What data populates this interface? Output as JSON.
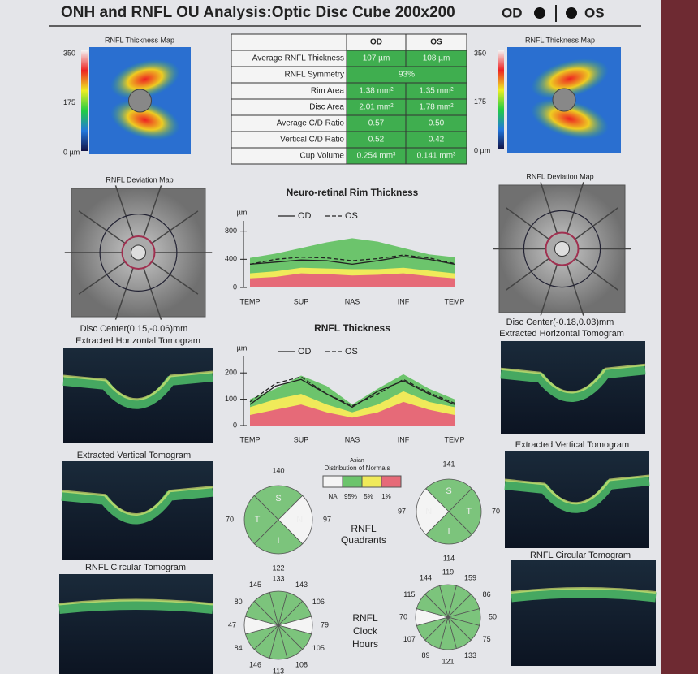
{
  "header": {
    "title": "ONH and RNFL OU Analysis:Optic Disc Cube 200x200",
    "od": "OD",
    "os": "OS"
  },
  "thickness_map": {
    "title": "RNFL Thickness Map",
    "scale": [
      350,
      175,
      "0 µm"
    ]
  },
  "table": {
    "header": [
      "OD",
      "OS"
    ],
    "rows": [
      [
        "Average RNFL Thickness",
        "107 µm",
        "108 µm"
      ],
      [
        "RNFL Symmetry",
        "93%"
      ],
      [
        "Rim Area",
        "1.38 mm²",
        "1.35 mm²"
      ],
      [
        "Disc Area",
        "2.01 mm²",
        "1.78 mm²"
      ],
      [
        "Average C/D Ratio",
        "0.57",
        "0.50"
      ],
      [
        "Vertical C/D Ratio",
        "0.52",
        "0.42"
      ],
      [
        "Cup Volume",
        "0.254 mm³",
        "0.141 mm³"
      ]
    ]
  },
  "deviation_map": {
    "title": "RNFL Deviation Map"
  },
  "disc_center": {
    "od": "Disc Center(0.15,-0.06)mm",
    "os": "Disc Center(-0.18,0.03)mm"
  },
  "tomograms": {
    "horizontal": "Extracted Horizontal Tomogram",
    "vertical": "Extracted Vertical Tomogram",
    "circular": "RNFL Circular Tomogram"
  },
  "rim_chart": {
    "type": "line",
    "title": "Neuro-retinal Rim Thickness",
    "y_unit": "µm",
    "categories": [
      "TEMP",
      null,
      "SUP",
      null,
      "NAS",
      null,
      "INF",
      null,
      "TEMP"
    ],
    "ylim": [
      0,
      900
    ],
    "yticks": [
      0,
      400,
      800
    ],
    "bands": [
      {
        "color": "#6cc46c",
        "values": [
          420,
          480,
          560,
          640,
          700,
          650,
          560,
          470,
          430
        ]
      },
      {
        "color": "#f0ea5a",
        "values": [
          200,
          230,
          280,
          270,
          260,
          260,
          280,
          240,
          200
        ]
      },
      {
        "color": "#e66a78",
        "values": [
          130,
          150,
          200,
          190,
          170,
          180,
          200,
          160,
          130
        ]
      }
    ],
    "series": [
      {
        "name": "OD",
        "color": "#222222",
        "line_style": "solid",
        "values": [
          330,
          360,
          390,
          380,
          330,
          380,
          440,
          400,
          330
        ]
      },
      {
        "name": "OS",
        "color": "#222222",
        "line_style": "dashed",
        "values": [
          330,
          400,
          430,
          420,
          380,
          410,
          460,
          420,
          340
        ]
      }
    ]
  },
  "rnfl_chart": {
    "type": "line",
    "title": "RNFL Thickness",
    "y_unit": "µm",
    "categories": [
      "TEMP",
      null,
      "SUP",
      null,
      "NAS",
      null,
      "INF",
      null,
      "TEMP"
    ],
    "ylim": [
      0,
      250
    ],
    "yticks": [
      0,
      100,
      200
    ],
    "bands": [
      {
        "color": "#6cc46c",
        "values": [
          100,
          140,
          190,
          150,
          80,
          140,
          195,
          140,
          100
        ]
      },
      {
        "color": "#f0ea5a",
        "values": [
          70,
          100,
          120,
          80,
          50,
          80,
          130,
          90,
          70
        ]
      },
      {
        "color": "#e66a78",
        "values": [
          40,
          60,
          80,
          50,
          30,
          50,
          90,
          60,
          40
        ]
      }
    ],
    "series": [
      {
        "name": "OD",
        "color": "#222222",
        "line_style": "solid",
        "values": [
          80,
          150,
          175,
          120,
          70,
          130,
          170,
          120,
          80
        ]
      },
      {
        "name": "OS",
        "color": "#222222",
        "line_style": "dashed",
        "values": [
          90,
          160,
          185,
          120,
          75,
          120,
          175,
          125,
          85
        ]
      }
    ]
  },
  "normals_legend": {
    "title": [
      "Asian",
      "Distribution of Normals"
    ],
    "labels": [
      "NA",
      "95%",
      "5%",
      "1%"
    ],
    "colors": [
      "#f4f4f4",
      "#6cc46c",
      "#f0ea5a",
      "#e66a78"
    ]
  },
  "quadrants": {
    "title": [
      "RNFL",
      "Quadrants"
    ],
    "od": {
      "letters": [
        "S",
        "N",
        "I",
        "T"
      ],
      "values": [
        140,
        97,
        122,
        70
      ],
      "colors": [
        "#7cc47c",
        "#f4f4f4",
        "#7cc47c",
        "#7cc47c"
      ]
    },
    "os": {
      "letters": [
        "S",
        "T",
        "I",
        "N"
      ],
      "values": [
        141,
        70,
        114,
        97
      ],
      "colors": [
        "#7cc47c",
        "#7cc47c",
        "#7cc47c",
        "#f4f4f4"
      ]
    }
  },
  "clock": {
    "title": [
      "RNFL",
      "Clock",
      "Hours"
    ],
    "od": {
      "values": [
        133,
        143,
        106,
        79,
        105,
        108,
        113,
        146,
        84,
        47,
        80,
        145
      ],
      "colors": [
        "#7cc47c",
        "#7cc47c",
        "#7cc47c",
        "#f4f4f4",
        "#7cc47c",
        "#7cc47c",
        "#7cc47c",
        "#7cc47c",
        "#7cc47c",
        "#f4f4f4",
        "#7cc47c",
        "#7cc47c"
      ]
    },
    "os": {
      "values": [
        119,
        159,
        86,
        50,
        75,
        133,
        121,
        89,
        107,
        70,
        115,
        144
      ],
      "colors": [
        "#7cc47c",
        "#7cc47c",
        "#7cc47c",
        "#7cc47c",
        "#7cc47c",
        "#7cc47c",
        "#7cc47c",
        "#7cc47c",
        "#7cc47c",
        "#f4f4f4",
        "#7cc47c",
        "#7cc47c"
      ]
    }
  }
}
